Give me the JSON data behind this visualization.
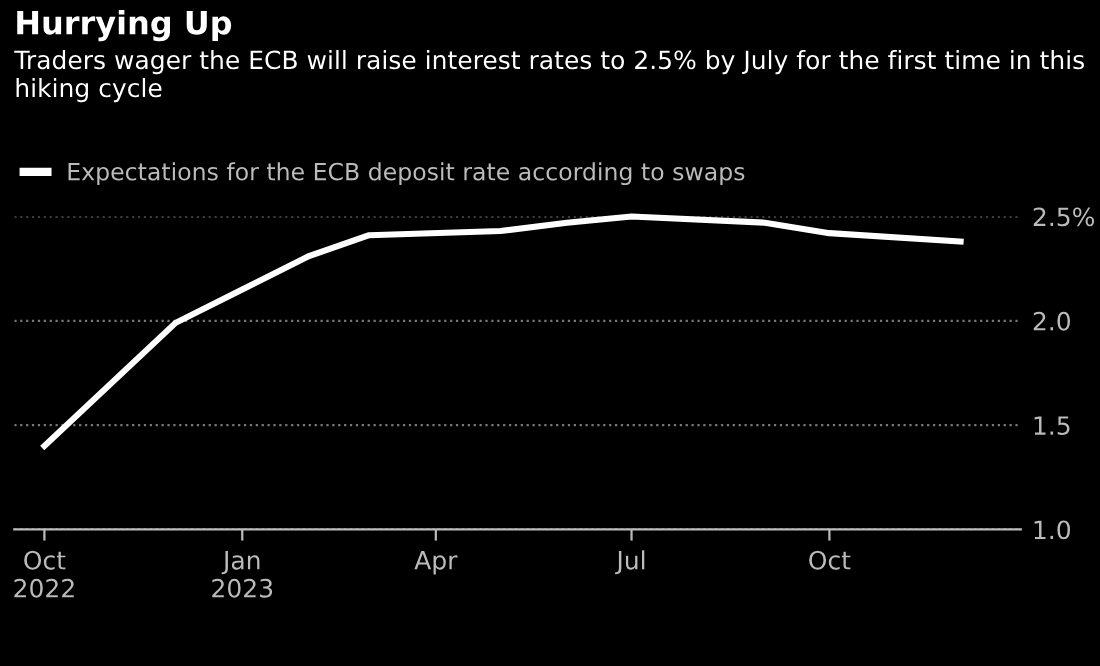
{
  "chart_data": {
    "type": "line",
    "title": "Hurrying Up",
    "subtitle": "Traders wager the ECB will raise interest rates to 2.5% by July for the first time in this hiking cycle",
    "x": [
      "2022-10-01",
      "2022-12-01",
      "2023-01-01",
      "2023-02-01",
      "2023-03-01",
      "2023-05-01",
      "2023-06-01",
      "2023-07-01",
      "2023-09-01",
      "2023-10-01",
      "2023-12-01"
    ],
    "series": [
      {
        "name": "Expectations for the ECB deposit rate according to swaps",
        "color": "#ffffff",
        "values": [
          1.4,
          1.99,
          2.15,
          2.31,
          2.41,
          2.43,
          2.47,
          2.5,
          2.47,
          2.42,
          2.38
        ]
      }
    ],
    "xlim": [
      "2022-09-17",
      "2023-12-29"
    ],
    "xticks": [
      {
        "value": "2022-10-01",
        "label": "Oct\n2022"
      },
      {
        "value": "2023-01-01",
        "label": "Jan\n2023"
      },
      {
        "value": "2023-04-01",
        "label": "Apr"
      },
      {
        "value": "2023-07-01",
        "label": "Jul"
      },
      {
        "value": "2023-10-01",
        "label": "Oct"
      }
    ],
    "ylim": [
      1.0,
      2.5
    ],
    "yticks": [
      {
        "value": 1.0,
        "label": "1.0"
      },
      {
        "value": 1.5,
        "label": "1.5"
      },
      {
        "value": 2.0,
        "label": "2.0"
      },
      {
        "value": 2.5,
        "label": "2.5%"
      }
    ],
    "grid": "y",
    "legend": "top left",
    "line_style": "solid",
    "marker": "none"
  }
}
